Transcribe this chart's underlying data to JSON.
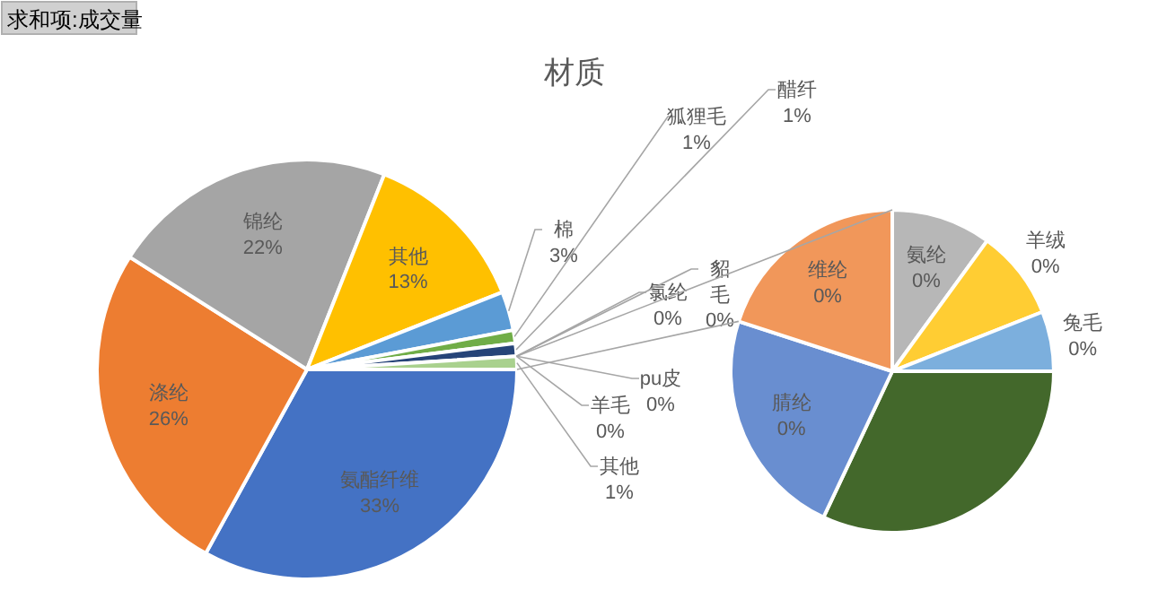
{
  "chart_data": [
    {
      "type": "pie",
      "title": "材质",
      "annotations": [
        "求和项:成交量"
      ],
      "categories": [
        "氨酯纤维",
        "涤纶",
        "锦纶",
        "其他",
        "棉",
        "狐狸毛",
        "醋纤",
        "氯纶",
        "貂毛",
        "pu皮",
        "羊毛",
        "其他"
      ],
      "values": [
        33,
        26,
        22,
        13,
        3,
        1,
        1,
        0,
        0,
        0,
        0,
        1
      ],
      "value_labels": [
        "33%",
        "26%",
        "22%",
        "13%",
        "3%",
        "1%",
        "1%",
        "0%",
        "0%",
        "0%",
        "0%",
        "1%"
      ],
      "colors": [
        "#4472c4",
        "#ed7d31",
        "#a5a5a5",
        "#ffc000",
        "#5b9bd5",
        "#70ad47",
        "#264478",
        "#9e480e",
        "#636363",
        "#997300",
        "#255e91",
        "#a9d18e"
      ]
    },
    {
      "type": "pie",
      "categories": [
        null,
        "腈纶",
        "维纶",
        "氨纶",
        "羊绒",
        "兔毛"
      ],
      "values": [
        0.32,
        0.23,
        0.2,
        0.1,
        0.09,
        0.06
      ],
      "value_labels": [
        null,
        "0%",
        "0%",
        "0%",
        "0%",
        "0%"
      ],
      "colors": [
        "#43682b",
        "#698ed0",
        "#f1975a",
        "#b7b7b7",
        "#ffcd33",
        "#7cafdd"
      ]
    }
  ]
}
